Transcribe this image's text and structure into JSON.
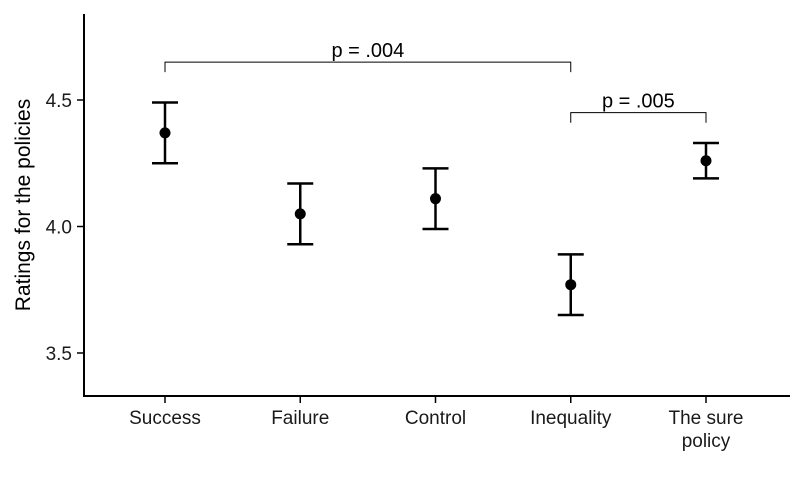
{
  "chart_data": {
    "type": "scatter",
    "title": "",
    "xlabel": "",
    "ylabel": "Ratings for the policies",
    "categories": [
      "Success",
      "Failure",
      "Control",
      "Inequality",
      "The sure policy"
    ],
    "category_lines": [
      [
        "Success"
      ],
      [
        "Failure"
      ],
      [
        "Control"
      ],
      [
        "Inequality"
      ],
      [
        "The sure",
        "policy"
      ]
    ],
    "values": [
      4.37,
      4.05,
      4.11,
      3.77,
      4.26
    ],
    "error_low": [
      4.25,
      3.93,
      3.99,
      3.65,
      4.19
    ],
    "error_high": [
      4.49,
      4.17,
      4.23,
      3.89,
      4.33
    ],
    "ylim": [
      3.33,
      4.84
    ],
    "yticks": [
      3.5,
      4.0,
      4.5
    ],
    "ytick_labels": [
      "3.5",
      "4.0",
      "4.5"
    ],
    "grid": false,
    "annotations": [
      {
        "label": "p = .004",
        "from": 0,
        "to": 3,
        "y": 4.65,
        "tip": 4.61
      },
      {
        "label": "p = .005",
        "from": 3,
        "to": 4,
        "y": 4.45,
        "tip": 4.41
      }
    ]
  }
}
